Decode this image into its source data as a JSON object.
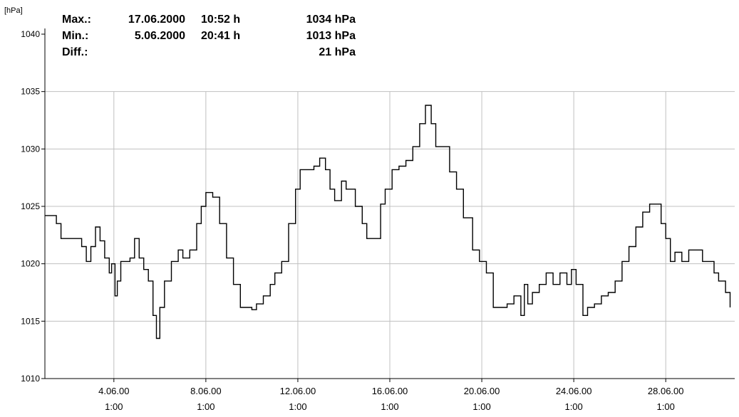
{
  "stats": {
    "max": {
      "label": "Max.:",
      "date": "17.06.2000",
      "time": "10:52 h",
      "value": "1034 hPa"
    },
    "min": {
      "label": "Min.:",
      "date": "5.06.2000",
      "time": "20:41 h",
      "value": "1013 hPa"
    },
    "diff": {
      "label": "Diff.:",
      "value": "21 hPa"
    }
  },
  "chart_data": {
    "type": "line",
    "ylabel": "[hPa]",
    "xlim": [
      1.0,
      31.0
    ],
    "ylim": [
      1010,
      1040
    ],
    "y_ticks": [
      1010,
      1015,
      1020,
      1025,
      1030,
      1035,
      1040
    ],
    "x_ticks": [
      {
        "x": 4.0,
        "date": "4.06.00",
        "time": "1:00"
      },
      {
        "x": 8.0,
        "date": "8.06.00",
        "time": "1:00"
      },
      {
        "x": 12.0,
        "date": "12.06.00",
        "time": "1:00"
      },
      {
        "x": 16.0,
        "date": "16.06.00",
        "time": "1:00"
      },
      {
        "x": 20.0,
        "date": "20.06.00",
        "time": "1:00"
      },
      {
        "x": 24.0,
        "date": "24.06.00",
        "time": "1:00"
      },
      {
        "x": 28.0,
        "date": "28.06.00",
        "time": "1:00"
      }
    ],
    "grid": true,
    "line_color": "#000000",
    "grid_color": "#c0c0c0",
    "series": [
      {
        "x": [
          1.0,
          1.2,
          1.5,
          1.7,
          2.0,
          2.3,
          2.6,
          2.8,
          3.0,
          3.2,
          3.4,
          3.6,
          3.8,
          3.9,
          4.05,
          4.15,
          4.3,
          4.5,
          4.7,
          4.9,
          5.1,
          5.3,
          5.5,
          5.7,
          5.85,
          6.0,
          6.2,
          6.5,
          6.8,
          7.0,
          7.3,
          7.6,
          7.8,
          8.0,
          8.3,
          8.6,
          8.9,
          9.2,
          9.5,
          9.7,
          10.0,
          10.2,
          10.5,
          10.8,
          11.0,
          11.3,
          11.6,
          11.9,
          12.1,
          12.4,
          12.7,
          12.95,
          13.2,
          13.4,
          13.6,
          13.9,
          14.1,
          14.3,
          14.5,
          14.8,
          15.0,
          15.3,
          15.6,
          15.8,
          16.1,
          16.4,
          16.7,
          17.0,
          17.3,
          17.55,
          17.8,
          18.0,
          18.3,
          18.6,
          18.9,
          19.2,
          19.6,
          19.9,
          20.2,
          20.5,
          20.8,
          21.1,
          21.4,
          21.7,
          21.85,
          22.0,
          22.2,
          22.5,
          22.8,
          23.1,
          23.4,
          23.7,
          23.9,
          24.1,
          24.4,
          24.6,
          24.9,
          25.2,
          25.5,
          25.8,
          26.1,
          26.4,
          26.7,
          27.0,
          27.3,
          27.5,
          27.8,
          28.0,
          28.2,
          28.4,
          28.7,
          29.0,
          29.3,
          29.6,
          29.9,
          30.1,
          30.3,
          30.6,
          30.8
        ],
        "values": [
          1024.2,
          1024.2,
          1023.5,
          1022.2,
          1022.2,
          1022.2,
          1021.5,
          1020.2,
          1021.5,
          1023.2,
          1022.0,
          1020.5,
          1019.2,
          1020.0,
          1017.2,
          1018.5,
          1020.2,
          1020.2,
          1020.5,
          1022.2,
          1020.5,
          1019.5,
          1018.5,
          1015.5,
          1013.5,
          1016.2,
          1018.5,
          1020.2,
          1021.2,
          1020.5,
          1021.2,
          1023.5,
          1025.0,
          1026.2,
          1025.8,
          1023.5,
          1020.5,
          1018.2,
          1016.2,
          1016.2,
          1016.0,
          1016.5,
          1017.2,
          1018.2,
          1019.2,
          1020.2,
          1023.5,
          1026.5,
          1028.2,
          1028.2,
          1028.5,
          1029.2,
          1028.2,
          1026.5,
          1025.5,
          1027.2,
          1026.5,
          1026.5,
          1025.0,
          1023.5,
          1022.2,
          1022.2,
          1025.2,
          1026.5,
          1028.2,
          1028.5,
          1029.0,
          1030.2,
          1032.2,
          1033.8,
          1032.2,
          1030.2,
          1030.2,
          1028.0,
          1026.5,
          1024.0,
          1021.2,
          1020.2,
          1019.2,
          1016.2,
          1016.2,
          1016.5,
          1017.2,
          1015.5,
          1018.2,
          1016.5,
          1017.5,
          1018.2,
          1019.2,
          1018.2,
          1019.2,
          1018.2,
          1019.5,
          1018.2,
          1015.5,
          1016.2,
          1016.5,
          1017.2,
          1017.5,
          1018.5,
          1020.2,
          1021.5,
          1023.2,
          1024.5,
          1025.2,
          1025.2,
          1023.5,
          1022.2,
          1020.2,
          1021.0,
          1020.2,
          1021.2,
          1021.2,
          1020.2,
          1020.2,
          1019.2,
          1018.5,
          1017.5,
          1016.2
        ]
      }
    ]
  }
}
